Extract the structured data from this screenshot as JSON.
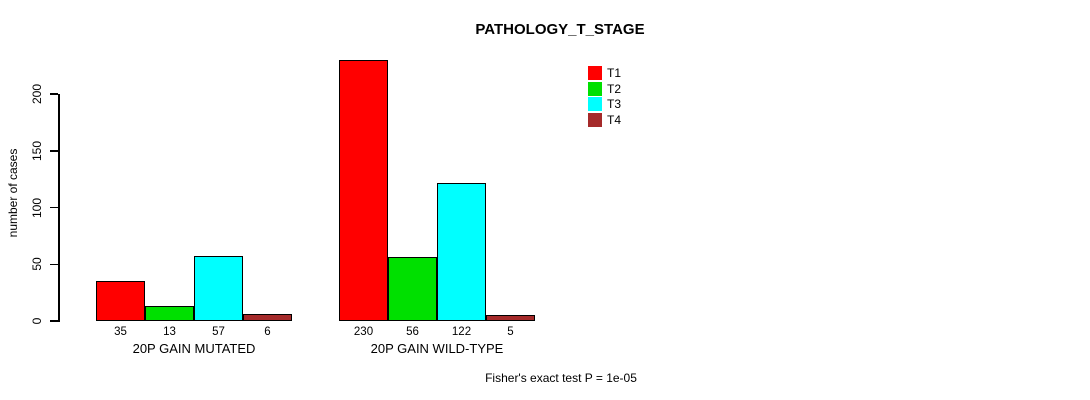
{
  "chart_data": {
    "type": "bar",
    "title": "PATHOLOGY_T_STAGE",
    "ylabel": "number of cases",
    "xlabel": "",
    "ylim": [
      0,
      200
    ],
    "yticks": [
      0,
      50,
      100,
      150,
      200
    ],
    "grid": false,
    "background_color": "#FFFFFF",
    "categories": [
      "20P GAIN MUTATED",
      "20P GAIN WILD-TYPE"
    ],
    "series": [
      {
        "name": "T1",
        "color": "#FF0000",
        "values": [
          35,
          230
        ]
      },
      {
        "name": "T2",
        "color": "#00E000",
        "values": [
          13,
          56
        ]
      },
      {
        "name": "T3",
        "color": "#00FFFF",
        "values": [
          57,
          122
        ]
      },
      {
        "name": "T4",
        "color": "#A52A2A",
        "values": [
          6,
          5
        ]
      }
    ],
    "bar_value_labels_shown": true,
    "legend": {
      "position": "top-right",
      "entries": [
        "T1",
        "T2",
        "T3",
        "T4"
      ]
    },
    "annotation": "Fisher's exact test P = 1e-05"
  }
}
